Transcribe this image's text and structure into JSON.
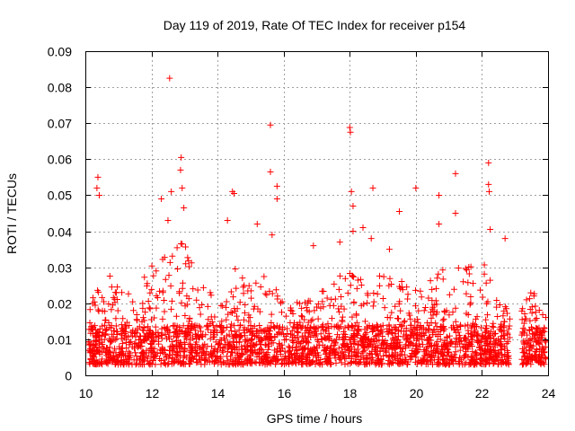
{
  "chart_data": {
    "type": "scatter",
    "title": "Day 119 of 2019, Rate Of TEC Index for receiver p154",
    "xlabel": "GPS time / hours",
    "ylabel": "ROTI / TECUs",
    "xlim": [
      10,
      24
    ],
    "ylim": [
      0,
      0.09
    ],
    "xticks": [
      "10",
      "12",
      "14",
      "16",
      "18",
      "20",
      "22",
      "24"
    ],
    "yticks": [
      "0",
      "0.01",
      "0.02",
      "0.03",
      "0.04",
      "0.05",
      "0.06",
      "0.07",
      "0.08",
      "0.09"
    ],
    "grid": true,
    "marker": "+",
    "series_color": "#ff0000",
    "density_profile": {
      "x": [
        10.1,
        10.5,
        11.0,
        11.5,
        12.0,
        12.5,
        13.0,
        13.5,
        14.0,
        14.5,
        15.0,
        15.5,
        16.0,
        16.5,
        17.0,
        17.5,
        18.0,
        18.5,
        19.0,
        19.5,
        20.0,
        20.5,
        21.0,
        21.5,
        22.0,
        22.5,
        23.0,
        23.5,
        24.0
      ],
      "typical_max": [
        0.018,
        0.03,
        0.025,
        0.022,
        0.032,
        0.035,
        0.04,
        0.025,
        0.022,
        0.03,
        0.025,
        0.028,
        0.025,
        0.02,
        0.022,
        0.028,
        0.03,
        0.032,
        0.03,
        0.028,
        0.025,
        0.028,
        0.032,
        0.03,
        0.032,
        0.025,
        0.015,
        0.025,
        0.015
      ]
    },
    "outliers": [
      {
        "x": 10.35,
        "y": 0.052
      },
      {
        "x": 10.38,
        "y": 0.055
      },
      {
        "x": 10.42,
        "y": 0.05
      },
      {
        "x": 12.55,
        "y": 0.0825
      },
      {
        "x": 12.6,
        "y": 0.051
      },
      {
        "x": 12.9,
        "y": 0.0605
      },
      {
        "x": 12.88,
        "y": 0.057
      },
      {
        "x": 12.93,
        "y": 0.052
      },
      {
        "x": 12.98,
        "y": 0.0465
      },
      {
        "x": 12.5,
        "y": 0.043
      },
      {
        "x": 12.3,
        "y": 0.049
      },
      {
        "x": 14.45,
        "y": 0.051
      },
      {
        "x": 14.5,
        "y": 0.0505
      },
      {
        "x": 14.3,
        "y": 0.043
      },
      {
        "x": 15.2,
        "y": 0.042
      },
      {
        "x": 15.6,
        "y": 0.0695
      },
      {
        "x": 15.6,
        "y": 0.0565
      },
      {
        "x": 15.8,
        "y": 0.0525
      },
      {
        "x": 15.8,
        "y": 0.049
      },
      {
        "x": 15.65,
        "y": 0.039
      },
      {
        "x": 16.9,
        "y": 0.036
      },
      {
        "x": 17.7,
        "y": 0.037
      },
      {
        "x": 18.0,
        "y": 0.0688
      },
      {
        "x": 18.02,
        "y": 0.0675
      },
      {
        "x": 18.05,
        "y": 0.051
      },
      {
        "x": 18.1,
        "y": 0.047
      },
      {
        "x": 18.1,
        "y": 0.04
      },
      {
        "x": 18.4,
        "y": 0.041
      },
      {
        "x": 18.7,
        "y": 0.052
      },
      {
        "x": 18.65,
        "y": 0.038
      },
      {
        "x": 19.5,
        "y": 0.0455
      },
      {
        "x": 20.0,
        "y": 0.052
      },
      {
        "x": 20.7,
        "y": 0.05
      },
      {
        "x": 20.7,
        "y": 0.042
      },
      {
        "x": 21.2,
        "y": 0.056
      },
      {
        "x": 21.2,
        "y": 0.045
      },
      {
        "x": 22.2,
        "y": 0.059
      },
      {
        "x": 22.2,
        "y": 0.053
      },
      {
        "x": 22.22,
        "y": 0.051
      },
      {
        "x": 22.25,
        "y": 0.0405
      },
      {
        "x": 22.7,
        "y": 0.038
      },
      {
        "x": 19.2,
        "y": 0.035
      }
    ]
  }
}
